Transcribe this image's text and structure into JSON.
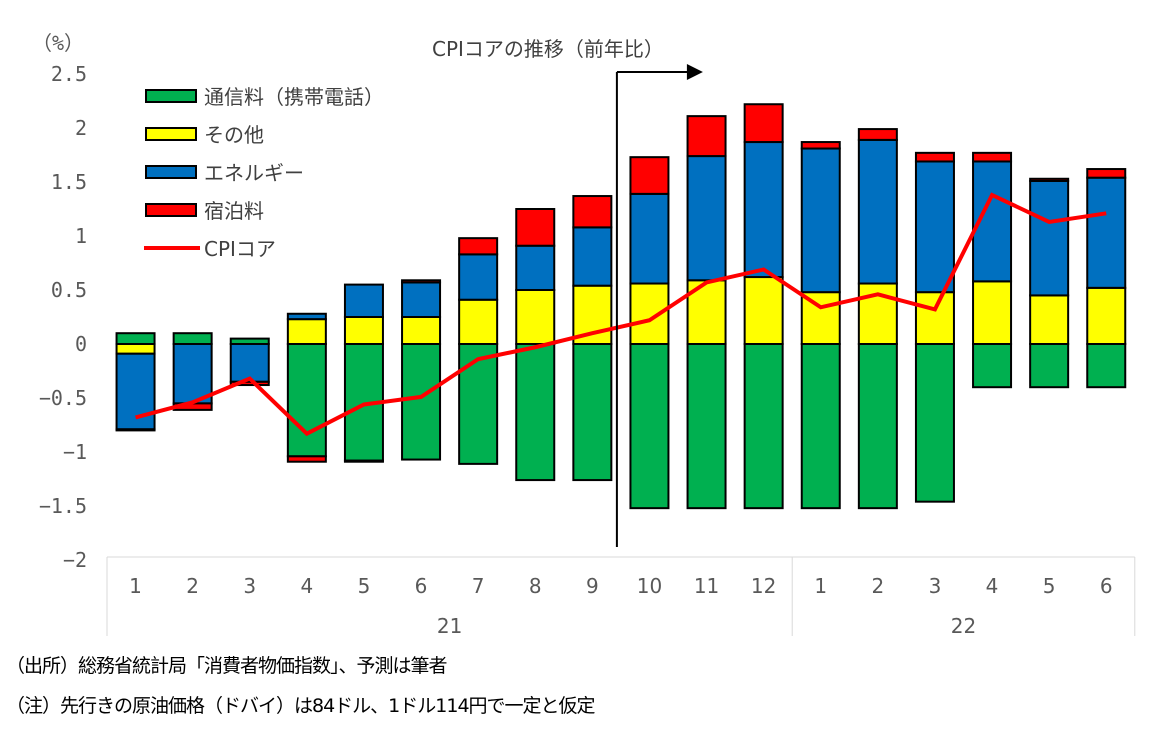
{
  "chart_data": {
    "type": "bar",
    "stacked": true,
    "title": "CPIコアの推移（前年比）",
    "ylabel": "（%）",
    "xlabel": "",
    "ylim": [
      -2,
      2.5
    ],
    "yticks": [
      2.5,
      2,
      1.5,
      1,
      0.5,
      0,
      -0.5,
      -1,
      -1.5,
      -2
    ],
    "ytick_labels": [
      "2.5",
      "2",
      "1.5",
      "1",
      "0.5",
      "0",
      "-0.5",
      "-1",
      "-1.5",
      "-2"
    ],
    "categories": [
      "1",
      "2",
      "3",
      "4",
      "5",
      "6",
      "7",
      "8",
      "9",
      "10",
      "11",
      "12",
      "1",
      "2",
      "3",
      "4",
      "5",
      "6"
    ],
    "year_groups": [
      {
        "label": "21",
        "count": 12
      },
      {
        "label": "22",
        "count": 6
      }
    ],
    "series": [
      {
        "name": "通信料（携帯電話）",
        "kind": "bar",
        "color": "#00B050",
        "values": [
          0.1,
          0.1,
          0.05,
          -1.04,
          -1.08,
          -1.07,
          -1.11,
          -1.26,
          -1.26,
          -1.52,
          -1.52,
          -1.52,
          -1.52,
          -1.52,
          -1.46,
          -0.4,
          -0.4,
          -0.4
        ]
      },
      {
        "name": "その他",
        "kind": "bar",
        "color": "#FFFF00",
        "values": [
          -0.09,
          0.0,
          0.0,
          0.23,
          0.25,
          0.25,
          0.41,
          0.5,
          0.54,
          0.56,
          0.59,
          0.62,
          0.48,
          0.56,
          0.48,
          0.58,
          0.45,
          0.52
        ]
      },
      {
        "name": "エネルギー",
        "kind": "bar",
        "color": "#0070C0",
        "values": [
          -0.7,
          -0.55,
          -0.35,
          0.05,
          0.3,
          0.32,
          0.42,
          0.41,
          0.54,
          0.83,
          1.15,
          1.25,
          1.33,
          1.33,
          1.21,
          1.11,
          1.06,
          1.02
        ]
      },
      {
        "name": "宿泊料",
        "kind": "bar",
        "color": "#FF0000",
        "values": [
          -0.01,
          -0.06,
          -0.03,
          -0.05,
          -0.01,
          0.02,
          0.15,
          0.34,
          0.29,
          0.34,
          0.37,
          0.35,
          0.06,
          0.1,
          0.08,
          0.08,
          0.02,
          0.08
        ]
      },
      {
        "name": "CPIコア",
        "kind": "line",
        "color": "#FF0000",
        "values": [
          -0.68,
          -0.54,
          -0.32,
          -0.83,
          -0.56,
          -0.49,
          -0.14,
          -0.03,
          0.1,
          0.22,
          0.57,
          0.69,
          0.34,
          0.46,
          0.32,
          1.38,
          1.13,
          1.21
        ]
      }
    ],
    "legend_position": "top-left",
    "grid": false,
    "annotation": {
      "type": "arrow",
      "start_after_category_index": 8,
      "label": "forecast marker"
    }
  },
  "notes": [
    "（出所）総務省統計局「消費者物価指数」、予測は筆者",
    "（注）先行きの原油価格（ドバイ）は84ドル、1ドル114円で一定と仮定"
  ]
}
